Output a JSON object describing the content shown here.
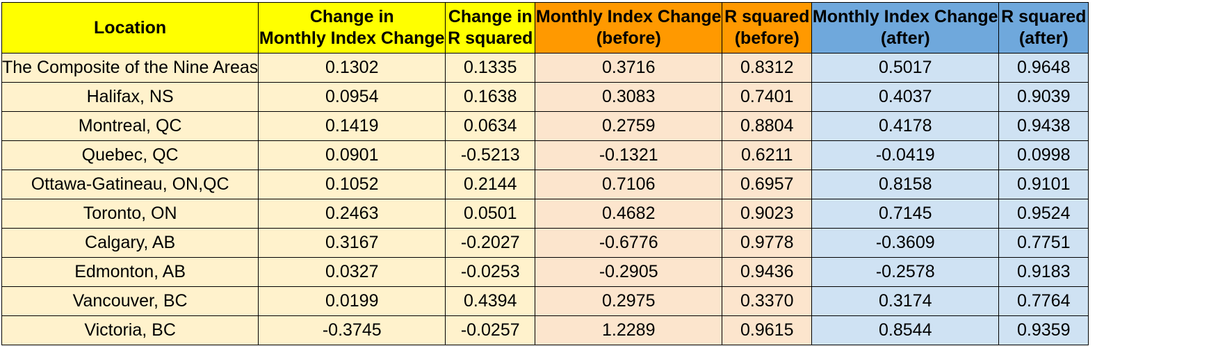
{
  "headers": [
    {
      "lines": [
        "Location"
      ]
    },
    {
      "lines": [
        "Change in",
        "Monthly Index Change"
      ]
    },
    {
      "lines": [
        "Change in",
        "R squared"
      ]
    },
    {
      "lines": [
        "Monthly Index Change",
        "(before)"
      ]
    },
    {
      "lines": [
        "R squared",
        "(before)"
      ]
    },
    {
      "lines": [
        "Monthly Index Change",
        "(after)"
      ]
    },
    {
      "lines": [
        "R squared",
        "(after)"
      ]
    }
  ],
  "rows": [
    [
      "The Composite of the Nine Areas",
      "0.1302",
      "0.1335",
      "0.3716",
      "0.8312",
      "0.5017",
      "0.9648"
    ],
    [
      "Halifax, NS",
      "0.0954",
      "0.1638",
      "0.3083",
      "0.7401",
      "0.4037",
      "0.9039"
    ],
    [
      "Montreal, QC",
      "0.1419",
      "0.0634",
      "0.2759",
      "0.8804",
      "0.4178",
      "0.9438"
    ],
    [
      "Quebec, QC",
      "0.0901",
      "-0.5213",
      "-0.1321",
      "0.6211",
      "-0.0419",
      "0.0998"
    ],
    [
      "Ottawa-Gatineau, ON,QC",
      "0.1052",
      "0.2144",
      "0.7106",
      "0.6957",
      "0.8158",
      "0.9101"
    ],
    [
      "Toronto, ON",
      "0.2463",
      "0.0501",
      "0.4682",
      "0.9023",
      "0.7145",
      "0.9524"
    ],
    [
      "Calgary, AB",
      "0.3167",
      "-0.2027",
      "-0.6776",
      "0.9778",
      "-0.3609",
      "0.7751"
    ],
    [
      "Edmonton, AB",
      "0.0327",
      "-0.0253",
      "-0.2905",
      "0.9436",
      "-0.2578",
      "0.9183"
    ],
    [
      "Vancouver, BC",
      "0.0199",
      "0.4394",
      "0.2975",
      "0.3370",
      "0.3174",
      "0.7764"
    ],
    [
      "Victoria, BC",
      "-0.3745",
      "-0.0257",
      "1.2289",
      "0.9615",
      "0.8544",
      "0.9359"
    ]
  ],
  "colors": {
    "header_yellow": "#ffff00",
    "header_orange": "#ff9900",
    "header_blue": "#6fa8dc",
    "cell_yellow": "#fff2cc",
    "cell_orange": "#fce5cd",
    "cell_blue": "#cfe2f3"
  }
}
